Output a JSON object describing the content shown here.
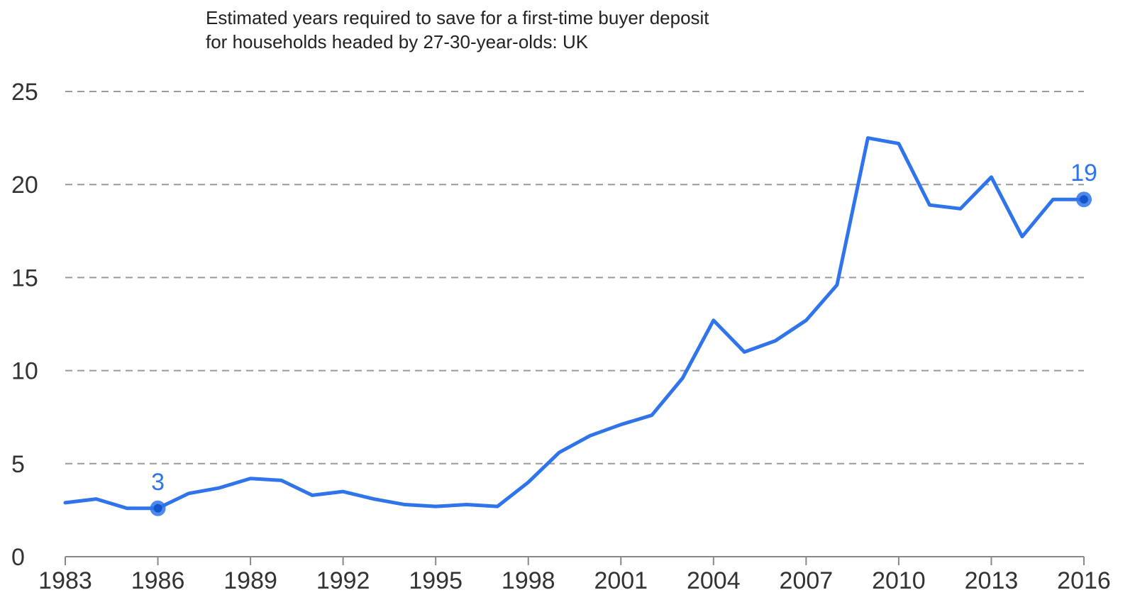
{
  "chart_data": {
    "type": "line",
    "title": "Estimated years required to save for a first-time buyer deposit",
    "subtitle": "for households headed by 27-30-year-olds: UK",
    "xlabel": "",
    "ylabel": "",
    "ylim": [
      0,
      25
    ],
    "yticks": [
      "0",
      "5",
      "10",
      "15",
      "20",
      "25"
    ],
    "xticks": [
      "1983",
      "1986",
      "1989",
      "1992",
      "1995",
      "1998",
      "2001",
      "2004",
      "2007",
      "2010",
      "2013",
      "2016"
    ],
    "grid": "horizontal dashed",
    "x": [
      1983,
      1984,
      1985,
      1986,
      1987,
      1988,
      1989,
      1990,
      1991,
      1992,
      1993,
      1994,
      1995,
      1996,
      1997,
      1998,
      1999,
      2000,
      2001,
      2002,
      2003,
      2004,
      2005,
      2006,
      2007,
      2008,
      2009,
      2010,
      2011,
      2012,
      2013,
      2014,
      2015,
      2016
    ],
    "series": [
      {
        "values": [
          2.9,
          3.1,
          2.6,
          2.6,
          3.4,
          3.7,
          4.2,
          4.1,
          3.3,
          3.5,
          3.1,
          2.8,
          2.7,
          2.8,
          2.7,
          4.0,
          5.6,
          6.5,
          7.1,
          7.6,
          9.6,
          12.7,
          11.0,
          11.6,
          12.7,
          14.6,
          22.5,
          22.2,
          18.9,
          18.7,
          20.4,
          17.2,
          19.2,
          19.2
        ],
        "color": "#2f74eb"
      }
    ],
    "annotations": [
      {
        "x": 1986,
        "y": 2.6,
        "label": "3"
      },
      {
        "x": 2016,
        "y": 19.2,
        "label": "19"
      }
    ]
  }
}
